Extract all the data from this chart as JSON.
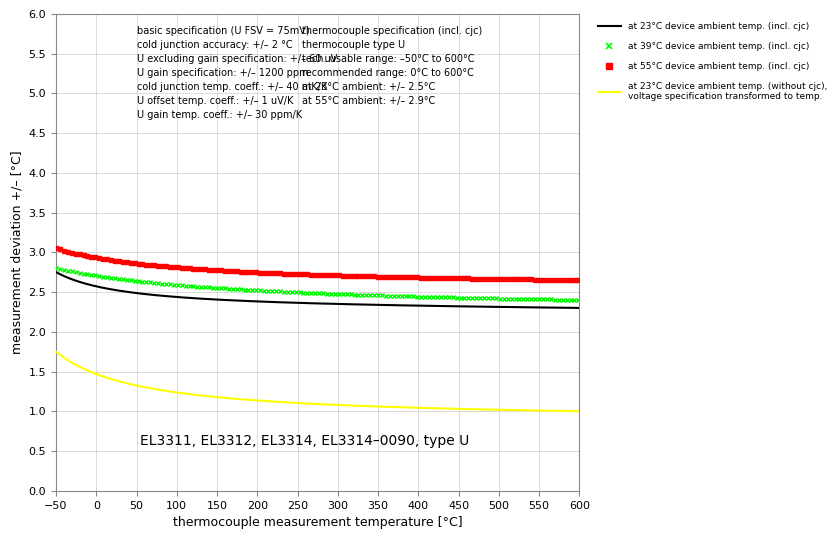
{
  "title": "",
  "xlabel": "thermocouple measurement temperature [°C]",
  "ylabel": "measurement deviation +/– [°C]",
  "xlim": [
    -50,
    600
  ],
  "ylim": [
    0,
    6
  ],
  "yticks": [
    0,
    0.5,
    1,
    1.5,
    2,
    2.5,
    3,
    3.5,
    4,
    4.5,
    5,
    5.5,
    6
  ],
  "xticks": [
    -50,
    0,
    50,
    100,
    150,
    200,
    250,
    300,
    350,
    400,
    450,
    500,
    550,
    600
  ],
  "annotation_bottom": "EL3311, EL3312, EL3314, EL3314–0090, type U",
  "legend_entries": [
    "at 23°C device ambient temp. (incl. cjc)",
    "at 39°C device ambient temp. (incl. cjc)",
    "at 55°C device ambient temp. (incl. cjc)",
    "at 23°C device ambient temp. (without cjc),\nvoltage specification transformed to temp."
  ],
  "text_block1_lines": [
    "basic specification (U FSV = 75mV)",
    "cold junction accuracy: +/– 2 °C",
    "U excluding gain specification: +/– 60 uV",
    "U gain specification: +/– 1200 ppm",
    "cold junction temp. coeff.: +/– 40 mK/K",
    "U offset temp. coeff.: +/– 1 uV/K",
    "U gain temp. coeff.: +/– 30 ppm/K"
  ],
  "text_block2_lines": [
    "thermocouple specification (incl. cjc)",
    "thermocouple type U",
    "tech. usable range: –50°C to 600°C",
    "recommended range: 0°C to 600°C",
    "at 23°C ambient: +/– 2.5°C",
    "at 55°C ambient: +/– 2.9°C"
  ],
  "background_color": "#ffffff",
  "grid_color": "#cccccc",
  "curve_yellow_start": 1.75,
  "curve_yellow_end": 1.0,
  "curve_black_start": 2.75,
  "curve_black_end": 2.3,
  "curve_green_start": 2.8,
  "curve_green_end": 2.4,
  "curve_red_start": 3.05,
  "curve_red_end": 2.65
}
